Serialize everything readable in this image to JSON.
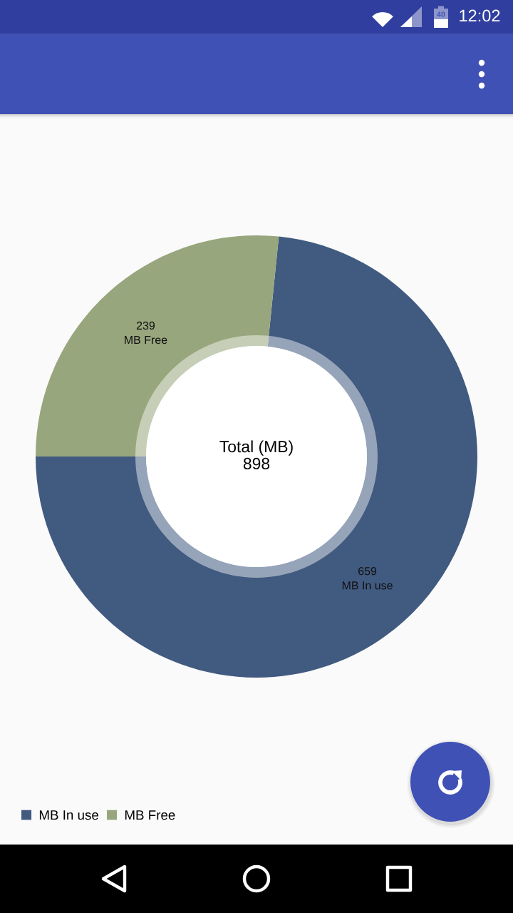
{
  "chart_data": {
    "type": "donut",
    "categories": [
      "MB In use",
      "MB Free"
    ],
    "values": [
      659,
      239
    ],
    "colors": [
      "#415a80",
      "#97a67c"
    ],
    "data_labels": true,
    "legend": "bottom left",
    "annotations": [
      "Total (MB)\n898",
      "12:02",
      "40"
    ]
  }
}
